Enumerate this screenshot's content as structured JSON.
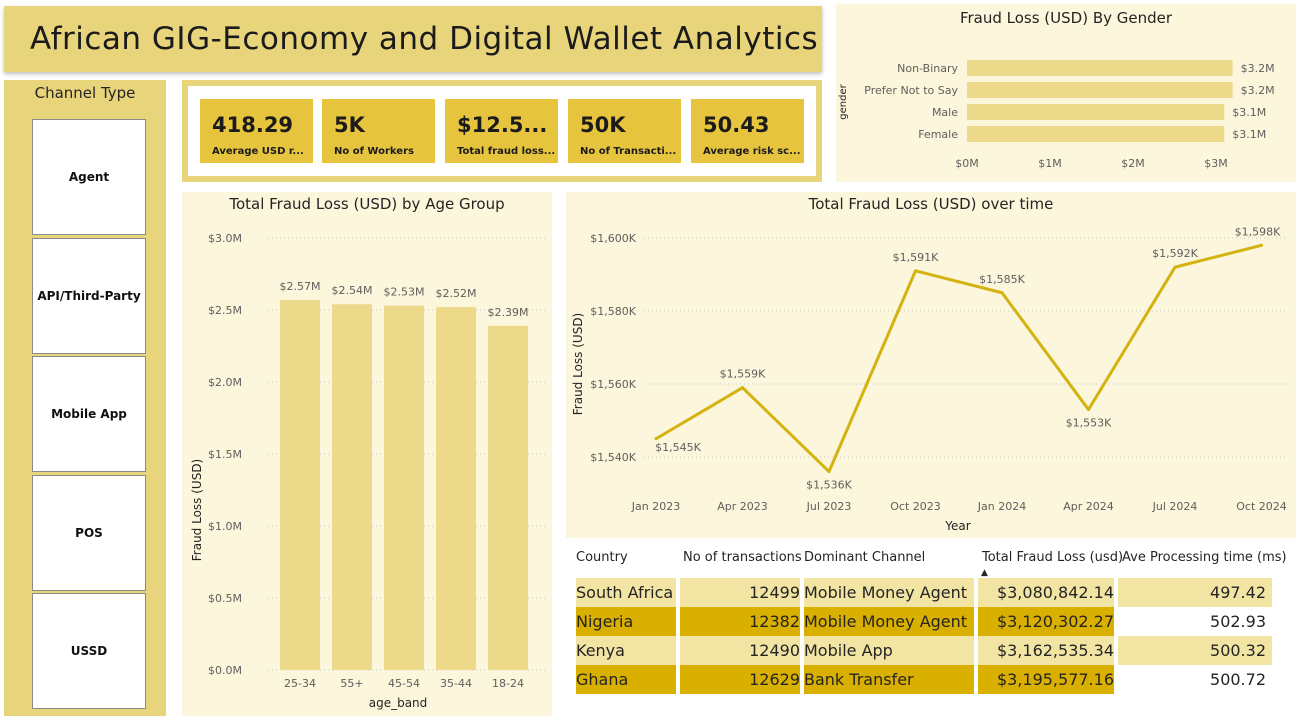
{
  "title": "African GIG-Economy and Digital Wallet Analytics",
  "colors": {
    "accent": "#e6c43e",
    "panel": "#fbf6dc",
    "bar": "#ecd98a",
    "line": "#d4b20f",
    "row_alt": "#d9b000",
    "row_light": "#f2e5a4"
  },
  "channel_type": {
    "title": "Channel Type",
    "options": [
      "Agent",
      "API/Third-Party",
      "Mobile App",
      "POS",
      "USSD"
    ]
  },
  "kpis": [
    {
      "value": "418.29",
      "label": "Average USD r..."
    },
    {
      "value": "5K",
      "label": "No of Workers"
    },
    {
      "value": "$12.5...",
      "label": "Total fraud loss..."
    },
    {
      "value": "50K",
      "label": "No of Transacti..."
    },
    {
      "value": "50.43",
      "label": "Average risk sc..."
    }
  ],
  "chart_data": [
    {
      "type": "bar",
      "orientation": "horizontal",
      "title": "Fraud Loss (USD) By Gender",
      "ylabel": "gender",
      "categories": [
        "Non-Binary",
        "Prefer Not to Say",
        "Male",
        "Female"
      ],
      "values": [
        3.2,
        3.2,
        3.1,
        3.1
      ],
      "data_labels": [
        "$3.2M",
        "$3.2M",
        "$3.1M",
        "$3.1M"
      ],
      "xticks": [
        "$0M",
        "$1M",
        "$2M",
        "$3M"
      ],
      "xlim": [
        0,
        3.2
      ]
    },
    {
      "type": "bar",
      "title": "Total Fraud Loss (USD) by Age Group",
      "xlabel": "age_band",
      "ylabel": "Fraud Loss (USD)",
      "categories": [
        "25-34",
        "55+",
        "45-54",
        "35-44",
        "18-24"
      ],
      "values": [
        2.57,
        2.54,
        2.53,
        2.52,
        2.39
      ],
      "data_labels": [
        "$2.57M",
        "$2.54M",
        "$2.53M",
        "$2.52M",
        "$2.39M"
      ],
      "yticks": [
        "$0.0M",
        "$0.5M",
        "$1.0M",
        "$1.5M",
        "$2.0M",
        "$2.5M",
        "$3.0M"
      ],
      "ylim": [
        0,
        3.0
      ],
      "grid": true
    },
    {
      "type": "line",
      "title": "Total Fraud Loss (USD) over time",
      "xlabel": "Year",
      "ylabel": "Fraud Loss (USD)",
      "x": [
        "Jan 2023",
        "Apr 2023",
        "Jul 2023",
        "Oct 2023",
        "Jan 2024",
        "Apr 2024",
        "Jul 2024",
        "Oct 2024"
      ],
      "values": [
        1545,
        1559,
        1536,
        1591,
        1585,
        1553,
        1592,
        1598
      ],
      "data_labels": [
        "$1,545K",
        "$1,559K",
        "$1,536K",
        "$1,591K",
        "$1,585K",
        "$1,553K",
        "$1,592K",
        "$1,598K"
      ],
      "yticks": [
        "$1,540K",
        "$1,560K",
        "$1,580K",
        "$1,600K"
      ],
      "ylim": [
        1540,
        1600
      ],
      "grid": true
    }
  ],
  "table": {
    "columns": [
      "Country",
      "No of transactions",
      "Dominant Channel",
      "Total Fraud Loss (usd)",
      "Ave Processing time (ms)"
    ],
    "rows": [
      [
        "South Africa",
        "12499",
        "Mobile Money Agent",
        "$3,080,842.14",
        "497.42"
      ],
      [
        "Nigeria",
        "12382",
        "Mobile Money Agent",
        "$3,120,302.27",
        "502.93"
      ],
      [
        "Kenya",
        "12490",
        "Mobile App",
        "$3,162,535.34",
        "500.32"
      ],
      [
        "Ghana",
        "12629",
        "Bank Transfer",
        "$3,195,577.16",
        "500.72"
      ]
    ]
  }
}
